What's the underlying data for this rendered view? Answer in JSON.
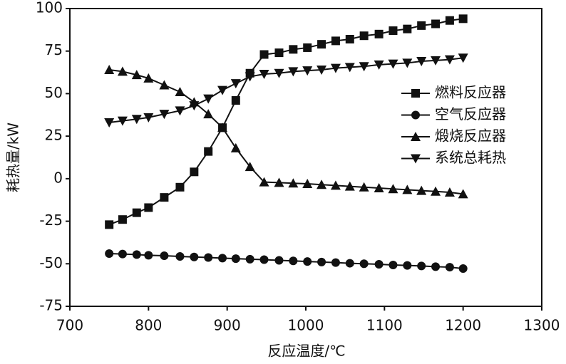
{
  "chart_data": {
    "type": "line",
    "x_label": "反应温度/℃",
    "y_label": "耗热量/kW",
    "x": [
      750,
      767,
      785,
      800,
      820,
      840,
      858,
      876,
      894,
      911,
      929,
      947,
      966,
      984,
      1002,
      1020,
      1038,
      1056,
      1074,
      1093,
      1111,
      1129,
      1147,
      1165,
      1183,
      1200
    ],
    "series": [
      {
        "name": "燃料反应器",
        "color": "#111111",
        "marker": "square",
        "values": [
          -27,
          -24,
          -20,
          -17,
          -11,
          -5,
          4,
          16,
          30,
          46,
          62,
          73,
          74,
          76,
          77,
          79,
          81,
          82,
          84,
          85,
          87,
          88,
          90,
          91,
          93,
          94
        ]
      },
      {
        "name": "空气反应器",
        "color": "#111111",
        "marker": "circle",
        "values": [
          -44,
          -44.3,
          -44.6,
          -45,
          -45.3,
          -45.7,
          -46,
          -46.3,
          -46.7,
          -47,
          -47.3,
          -47.6,
          -48,
          -48.3,
          -48.7,
          -49,
          -49.3,
          -49.7,
          -50,
          -50.3,
          -50.7,
          -51,
          -51.3,
          -51.7,
          -52,
          -52.8
        ]
      },
      {
        "name": "煅烧反应器",
        "color": "#111111",
        "marker": "triangle-up",
        "values": [
          64,
          63,
          61,
          59,
          55,
          51,
          45,
          38,
          30,
          18,
          7,
          -2,
          -2.3,
          -2.7,
          -3,
          -3.5,
          -4,
          -4.5,
          -5,
          -5.5,
          -6,
          -6.5,
          -7,
          -7.5,
          -8,
          -9
        ]
      },
      {
        "name": "系统总耗热",
        "color": "#111111",
        "marker": "triangle-down",
        "values": [
          33,
          34,
          35,
          36,
          38,
          40,
          43,
          47,
          52,
          56,
          60,
          61.5,
          62,
          63,
          63.5,
          64,
          65,
          65.5,
          66,
          67,
          67.5,
          68,
          69,
          69.5,
          70,
          71
        ]
      }
    ],
    "xlim": [
      700,
      1300
    ],
    "xticks": [
      700,
      800,
      900,
      1000,
      1100,
      1200,
      1300
    ],
    "ylim": [
      -75,
      100
    ],
    "yticks": [
      -75,
      -50,
      -25,
      0,
      25,
      50,
      75,
      100
    ]
  }
}
